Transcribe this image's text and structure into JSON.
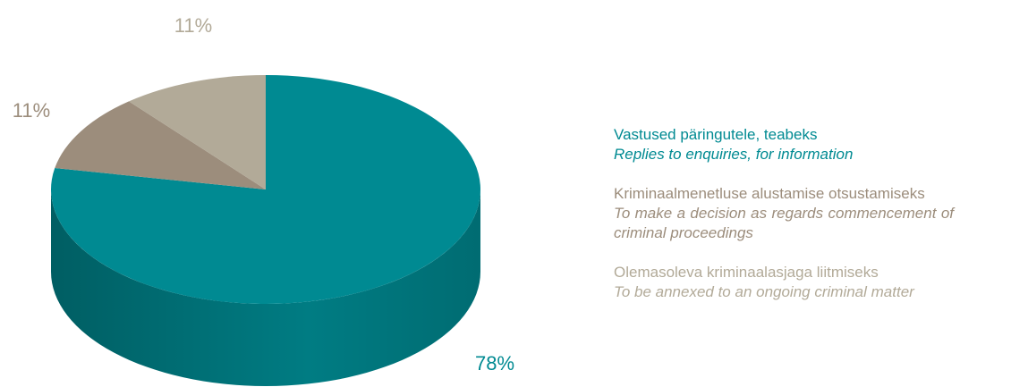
{
  "chart_data": {
    "type": "pie3d",
    "categories": [
      "Vastused päringutele, teabeks",
      "Kriminaalmenetluse alustamise otsustamiseks",
      "Olemasoleva kriminaalasjaga liitmiseks"
    ],
    "categories_translation": [
      "Replies to enquiries, for information",
      "To make a decision as regards commencement of criminal proceedings",
      "To be annexed to an ongoing criminal matter"
    ],
    "values": [
      78,
      11,
      11
    ],
    "value_labels": [
      "78%",
      "11%",
      "11%"
    ],
    "colors": [
      "#008a92",
      "#9c8d7c",
      "#b2aa98"
    ]
  }
}
